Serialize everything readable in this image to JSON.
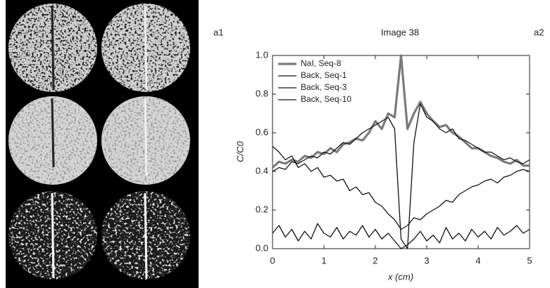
{
  "chart_data": {
    "type": "line",
    "panel_labels": [
      "a1",
      "a2"
    ],
    "title": "Image 38",
    "xlabel": "x (cm)",
    "ylabel": "C/C0",
    "x": [
      0,
      0.125,
      0.25,
      0.375,
      0.5,
      0.625,
      0.75,
      0.875,
      1,
      1.125,
      1.25,
      1.375,
      1.5,
      1.625,
      1.75,
      1.875,
      2,
      2.125,
      2.25,
      2.375,
      2.5,
      2.625,
      2.75,
      2.875,
      3,
      3.125,
      3.25,
      3.375,
      3.5,
      3.625,
      3.75,
      3.875,
      4,
      4.125,
      4.25,
      4.375,
      4.5,
      4.625,
      4.75,
      4.875,
      5
    ],
    "series": [
      {
        "name": "NaI, Seq-8",
        "color": "#7a7a7a",
        "values": [
          0.42,
          0.45,
          0.44,
          0.46,
          0.45,
          0.48,
          0.47,
          0.5,
          0.49,
          0.52,
          0.5,
          0.54,
          0.55,
          0.57,
          0.56,
          0.6,
          0.66,
          0.62,
          0.7,
          0.68,
          1.0,
          0.62,
          0.7,
          0.76,
          0.7,
          0.66,
          0.63,
          0.64,
          0.6,
          0.58,
          0.55,
          0.52,
          0.52,
          0.5,
          0.48,
          0.47,
          0.45,
          0.44,
          0.46,
          0.43,
          0.43
        ]
      },
      {
        "name": "Back, Seq-1",
        "color": "#111111",
        "values": [
          0.4,
          0.42,
          0.41,
          0.45,
          0.44,
          0.46,
          0.48,
          0.47,
          0.5,
          0.49,
          0.52,
          0.55,
          0.54,
          0.57,
          0.6,
          0.62,
          0.64,
          0.66,
          0.68,
          0.62,
          0.05,
          0.0,
          0.55,
          0.75,
          0.68,
          0.66,
          0.62,
          0.6,
          0.62,
          0.57,
          0.56,
          0.54,
          0.52,
          0.5,
          0.5,
          0.48,
          0.46,
          0.47,
          0.45,
          0.44,
          0.46
        ]
      },
      {
        "name": "Back, Seq-3",
        "color": "#111111",
        "values": [
          0.53,
          0.5,
          0.46,
          0.48,
          0.42,
          0.44,
          0.4,
          0.42,
          0.37,
          0.38,
          0.35,
          0.36,
          0.3,
          0.32,
          0.28,
          0.29,
          0.24,
          0.22,
          0.18,
          0.15,
          0.1,
          0.12,
          0.16,
          0.15,
          0.18,
          0.2,
          0.22,
          0.25,
          0.24,
          0.28,
          0.3,
          0.32,
          0.33,
          0.35,
          0.36,
          0.34,
          0.37,
          0.38,
          0.4,
          0.41,
          0.4
        ]
      },
      {
        "name": "Back, Seq-10",
        "color": "#111111",
        "values": [
          0.08,
          0.12,
          0.06,
          0.1,
          0.04,
          0.09,
          0.05,
          0.13,
          0.08,
          0.06,
          0.11,
          0.05,
          0.09,
          0.07,
          0.12,
          0.06,
          0.1,
          0.05,
          0.08,
          0.04,
          0.0,
          0.02,
          0.05,
          0.09,
          0.04,
          0.07,
          0.03,
          0.11,
          0.05,
          0.08,
          0.04,
          0.1,
          0.06,
          0.09,
          0.05,
          0.11,
          0.07,
          0.09,
          0.12,
          0.08,
          0.1
        ]
      }
    ],
    "xlim": [
      0,
      5
    ],
    "xticks": [
      0,
      1,
      2,
      3,
      4,
      5
    ],
    "ylim": [
      0,
      1
    ],
    "yticks": [
      {
        "value": 0,
        "label": "0.0"
      },
      0.2,
      0.4,
      0.6,
      0.8,
      {
        "value": 1,
        "label": "1.0"
      }
    ],
    "legend": "upper left"
  }
}
